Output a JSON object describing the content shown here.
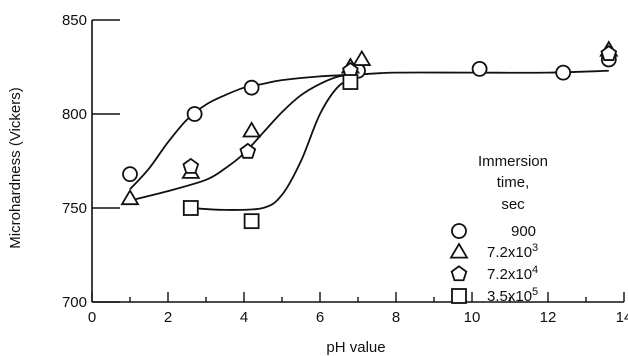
{
  "chart_data": {
    "type": "scatter",
    "title": "",
    "xlabel": "pH value",
    "ylabel": "Microhardness (Vickers)",
    "xlim": [
      0,
      14
    ],
    "ylim": [
      700,
      850
    ],
    "x_ticks": [
      0,
      2,
      4,
      6,
      8,
      10,
      12,
      14
    ],
    "y_ticks": [
      700,
      750,
      800,
      850
    ],
    "x_tick_labels": [
      "0",
      "2",
      "4",
      "6",
      "8",
      "10",
      "12",
      "14"
    ],
    "y_tick_labels": [
      "700",
      "750",
      "800",
      "850"
    ],
    "grid": false,
    "legend": {
      "placement": "right",
      "title": [
        "Immersion",
        "time,",
        "sec"
      ]
    },
    "series": [
      {
        "name": "900",
        "marker": "circle",
        "points": [
          [
            1.0,
            768
          ],
          [
            2.7,
            800
          ],
          [
            4.2,
            814
          ],
          [
            7.0,
            823
          ],
          [
            10.2,
            824
          ],
          [
            12.4,
            822
          ],
          [
            13.6,
            829
          ]
        ],
        "curve": [
          [
            1.0,
            760
          ],
          [
            1.5,
            771
          ],
          [
            2.0,
            785
          ],
          [
            2.5,
            797
          ],
          [
            3.0,
            805
          ],
          [
            3.5,
            810
          ],
          [
            4.0,
            814
          ],
          [
            4.5,
            816
          ],
          [
            5.0,
            818
          ],
          [
            6.0,
            820
          ],
          [
            7.0,
            821
          ],
          [
            8.0,
            822
          ],
          [
            10.0,
            822
          ],
          [
            12.0,
            822
          ],
          [
            13.6,
            823
          ]
        ]
      },
      {
        "name": "7.2x10",
        "exponent": "3",
        "marker": "triangle",
        "points": [
          [
            1.0,
            755
          ],
          [
            2.6,
            769
          ],
          [
            4.2,
            791
          ],
          [
            6.8,
            825
          ],
          [
            7.1,
            829
          ],
          [
            13.6,
            834
          ]
        ],
        "curve": [
          [
            1.0,
            754
          ],
          [
            2.0,
            759
          ],
          [
            3.0,
            765
          ],
          [
            3.5,
            771
          ],
          [
            4.0,
            779
          ],
          [
            4.5,
            790
          ],
          [
            5.0,
            801
          ],
          [
            5.5,
            810
          ],
          [
            6.0,
            816
          ],
          [
            6.5,
            820
          ],
          [
            7.0,
            821
          ]
        ]
      },
      {
        "name": "7.2x10",
        "exponent": "4",
        "marker": "pentagon",
        "points": [
          [
            2.6,
            772
          ],
          [
            4.1,
            780
          ],
          [
            6.8,
            823
          ],
          [
            13.6,
            832
          ]
        ]
      },
      {
        "name": "3.5x10",
        "exponent": "5",
        "marker": "square",
        "points": [
          [
            2.6,
            750
          ],
          [
            4.2,
            743
          ],
          [
            6.8,
            817
          ]
        ],
        "curve": [
          [
            2.6,
            750
          ],
          [
            3.5,
            749
          ],
          [
            4.5,
            750
          ],
          [
            5.0,
            757
          ],
          [
            5.5,
            775
          ],
          [
            6.0,
            800
          ],
          [
            6.5,
            815
          ],
          [
            7.0,
            820
          ]
        ]
      }
    ]
  }
}
